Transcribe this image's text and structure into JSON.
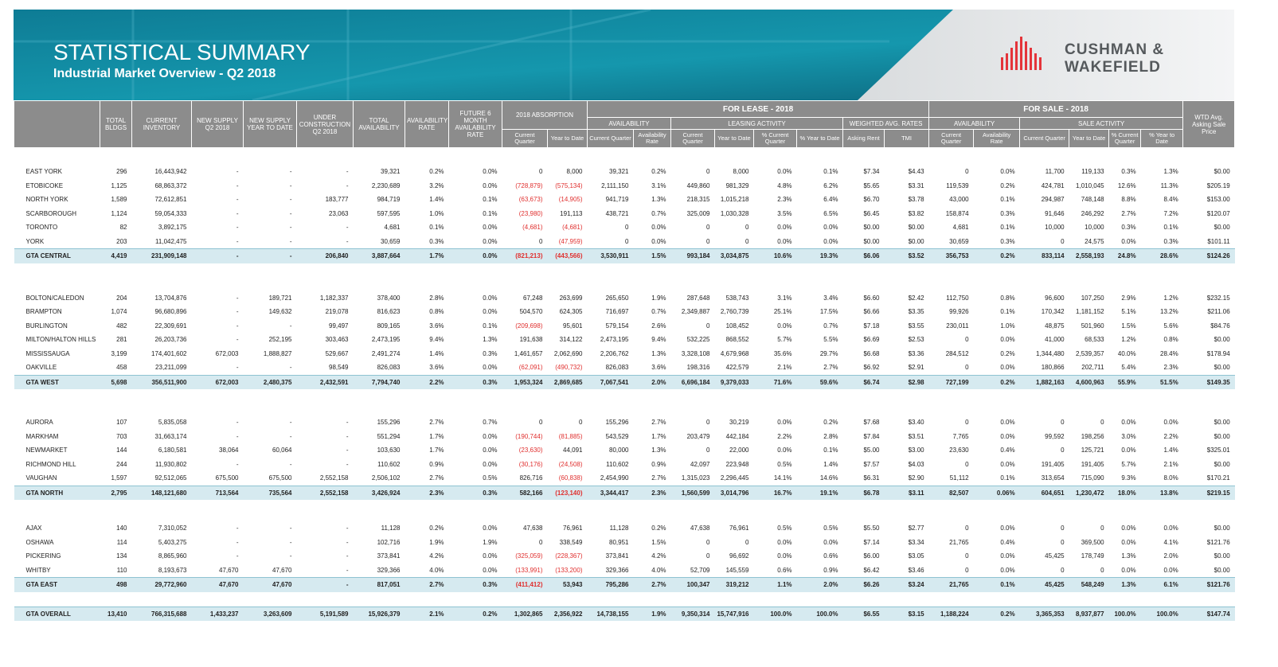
{
  "header": {
    "title": "STATISTICAL SUMMARY",
    "subtitle": "Industrial Market Overview - Q2 2018",
    "logo": [
      "CUSHMAN &",
      "WAKEFIELD"
    ]
  },
  "table": {
    "header_groups": [
      "2018 ABSORPTION",
      "FOR LEASE - 2018",
      "FOR SALE - 2018"
    ],
    "sub_groups": [
      "AVAILABILITY",
      "LEASING ACTIVITY",
      "WEIGHTED AVG. RATES",
      "AVAILABILITY",
      "SALE ACTIVITY"
    ],
    "columns": [
      "TOTAL BLDGS",
      "CURRENT INVENTORY",
      "NEW SUPPLY Q2 2018",
      "NEW SUPPLY YEAR TO DATE",
      "UNDER CONSTRUCTION Q2 2018",
      "TOTAL AVAILABILITY",
      "AVAILABILITY RATE",
      "FUTURE 6 MONTH AVAILABILITY RATE",
      "Current Quarter",
      "Year to Date",
      "Current Quarter",
      "Availability Rate",
      "Current Quarter",
      "Year to Date",
      "% Current Quarter",
      "% Year to Date",
      "Asking Rent",
      "TMI",
      "Current Quarter",
      "Availability Rate",
      "Current Quarter",
      "Year to Date",
      "% Current Quarter",
      "% Year to Date",
      "WTD Avg. Asking Sale Price"
    ],
    "groups": [
      {
        "rows": [
          [
            "EAST YORK",
            "296",
            "16,443,942",
            "-",
            "-",
            "-",
            "39,321",
            "0.2%",
            "0.0%",
            "0",
            "8,000",
            "39,321",
            "0.2%",
            "0",
            "8,000",
            "0.0%",
            "0.1%",
            "$7.34",
            "$4.43",
            "0",
            "0.0%",
            "11,700",
            "119,133",
            "0.3%",
            "1.3%",
            "$0.00"
          ],
          [
            "ETOBICOKE",
            "1,125",
            "68,863,372",
            "-",
            "-",
            "-",
            "2,230,689",
            "3.2%",
            "0.0%",
            "(728,879)",
            "(575,134)",
            "2,111,150",
            "3.1%",
            "449,860",
            "981,329",
            "4.8%",
            "6.2%",
            "$5.65",
            "$3.31",
            "119,539",
            "0.2%",
            "424,781",
            "1,010,045",
            "12.6%",
            "11.3%",
            "$205.19"
          ],
          [
            "NORTH YORK",
            "1,589",
            "72,612,851",
            "-",
            "-",
            "183,777",
            "984,719",
            "1.4%",
            "0.1%",
            "(63,673)",
            "(14,905)",
            "941,719",
            "1.3%",
            "218,315",
            "1,015,218",
            "2.3%",
            "6.4%",
            "$6.70",
            "$3.78",
            "43,000",
            "0.1%",
            "294,987",
            "748,148",
            "8.8%",
            "8.4%",
            "$153.00"
          ],
          [
            "SCARBOROUGH",
            "1,124",
            "59,054,333",
            "-",
            "-",
            "23,063",
            "597,595",
            "1.0%",
            "0.1%",
            "(23,980)",
            "191,113",
            "438,721",
            "0.7%",
            "325,009",
            "1,030,328",
            "3.5%",
            "6.5%",
            "$6.45",
            "$3.82",
            "158,874",
            "0.3%",
            "91,646",
            "246,292",
            "2.7%",
            "7.2%",
            "$120.07"
          ],
          [
            "TORONTO",
            "82",
            "3,892,175",
            "-",
            "-",
            "-",
            "4,681",
            "0.1%",
            "0.0%",
            "(4,681)",
            "(4,681)",
            "0",
            "0.0%",
            "0",
            "0",
            "0.0%",
            "0.0%",
            "$0.00",
            "$0.00",
            "4,681",
            "0.1%",
            "10,000",
            "10,000",
            "0.3%",
            "0.1%",
            "$0.00"
          ],
          [
            "YORK",
            "203",
            "11,042,475",
            "-",
            "-",
            "-",
            "30,659",
            "0.3%",
            "0.0%",
            "0",
            "(47,959)",
            "0",
            "0.0%",
            "0",
            "0",
            "0.0%",
            "0.0%",
            "$0.00",
            "$0.00",
            "30,659",
            "0.3%",
            "0",
            "24,575",
            "0.0%",
            "0.3%",
            "$101.11"
          ]
        ],
        "total": [
          "GTA CENTRAL",
          "4,419",
          "231,909,148",
          "-",
          "-",
          "206,840",
          "3,887,664",
          "1.7%",
          "0.0%",
          "(821,213)",
          "(443,566)",
          "3,530,911",
          "1.5%",
          "993,184",
          "3,034,875",
          "10.6%",
          "19.3%",
          "$6.06",
          "$3.52",
          "356,753",
          "0.2%",
          "833,114",
          "2,558,193",
          "24.8%",
          "28.6%",
          "$124.26"
        ]
      },
      {
        "rows": [
          [
            "BOLTON/CALEDON",
            "204",
            "13,704,876",
            "-",
            "189,721",
            "1,182,337",
            "378,400",
            "2.8%",
            "0.0%",
            "67,248",
            "263,699",
            "265,650",
            "1.9%",
            "287,648",
            "538,743",
            "3.1%",
            "3.4%",
            "$6.60",
            "$2.42",
            "112,750",
            "0.8%",
            "96,600",
            "107,250",
            "2.9%",
            "1.2%",
            "$232.15"
          ],
          [
            "BRAMPTON",
            "1,074",
            "96,680,896",
            "-",
            "149,632",
            "219,078",
            "816,623",
            "0.8%",
            "0.0%",
            "504,570",
            "624,305",
            "716,697",
            "0.7%",
            "2,349,887",
            "2,760,739",
            "25.1%",
            "17.5%",
            "$6.66",
            "$3.35",
            "99,926",
            "0.1%",
            "170,342",
            "1,181,152",
            "5.1%",
            "13.2%",
            "$211.06"
          ],
          [
            "BURLINGTON",
            "482",
            "22,309,691",
            "-",
            "-",
            "99,497",
            "809,165",
            "3.6%",
            "0.1%",
            "(209,698)",
            "95,601",
            "579,154",
            "2.6%",
            "0",
            "108,452",
            "0.0%",
            "0.7%",
            "$7.18",
            "$3.55",
            "230,011",
            "1.0%",
            "48,875",
            "501,960",
            "1.5%",
            "5.6%",
            "$84.76"
          ],
          [
            "MILTON/HALTON HILLS",
            "281",
            "26,203,736",
            "-",
            "252,195",
            "303,463",
            "2,473,195",
            "9.4%",
            "1.3%",
            "191,638",
            "314,122",
            "2,473,195",
            "9.4%",
            "532,225",
            "868,552",
            "5.7%",
            "5.5%",
            "$6.69",
            "$2.53",
            "0",
            "0.0%",
            "41,000",
            "68,533",
            "1.2%",
            "0.8%",
            "$0.00"
          ],
          [
            "MISSISSAUGA",
            "3,199",
            "174,401,602",
            "672,003",
            "1,888,827",
            "529,667",
            "2,491,274",
            "1.4%",
            "0.3%",
            "1,461,657",
            "2,062,690",
            "2,206,762",
            "1.3%",
            "3,328,108",
            "4,679,968",
            "35.6%",
            "29.7%",
            "$6.68",
            "$3.36",
            "284,512",
            "0.2%",
            "1,344,480",
            "2,539,357",
            "40.0%",
            "28.4%",
            "$178.94"
          ],
          [
            "OAKVILLE",
            "458",
            "23,211,099",
            "-",
            "-",
            "98,549",
            "826,083",
            "3.6%",
            "0.0%",
            "(62,091)",
            "(490,732)",
            "826,083",
            "3.6%",
            "198,316",
            "422,579",
            "2.1%",
            "2.7%",
            "$6.92",
            "$2.91",
            "0",
            "0.0%",
            "180,866",
            "202,711",
            "5.4%",
            "2.3%",
            "$0.00"
          ]
        ],
        "total": [
          "GTA WEST",
          "5,698",
          "356,511,900",
          "672,003",
          "2,480,375",
          "2,432,591",
          "7,794,740",
          "2.2%",
          "0.3%",
          "1,953,324",
          "2,869,685",
          "7,067,541",
          "2.0%",
          "6,696,184",
          "9,379,033",
          "71.6%",
          "59.6%",
          "$6.74",
          "$2.98",
          "727,199",
          "0.2%",
          "1,882,163",
          "4,600,963",
          "55.9%",
          "51.5%",
          "$149.35"
        ]
      },
      {
        "rows": [
          [
            "AURORA",
            "107",
            "5,835,058",
            "-",
            "-",
            "-",
            "155,296",
            "2.7%",
            "0.7%",
            "0",
            "0",
            "155,296",
            "2.7%",
            "0",
            "30,219",
            "0.0%",
            "0.2%",
            "$7.68",
            "$3.40",
            "0",
            "0.0%",
            "0",
            "0",
            "0.0%",
            "0.0%",
            "$0.00"
          ],
          [
            "MARKHAM",
            "703",
            "31,663,174",
            "-",
            "-",
            "-",
            "551,294",
            "1.7%",
            "0.0%",
            "(190,744)",
            "(81,885)",
            "543,529",
            "1.7%",
            "203,479",
            "442,184",
            "2.2%",
            "2.8%",
            "$7.84",
            "$3.51",
            "7,765",
            "0.0%",
            "99,592",
            "198,256",
            "3.0%",
            "2.2%",
            "$0.00"
          ],
          [
            "NEWMARKET",
            "144",
            "6,180,581",
            "38,064",
            "60,064",
            "-",
            "103,630",
            "1.7%",
            "0.0%",
            "(23,630)",
            "44,091",
            "80,000",
            "1.3%",
            "0",
            "22,000",
            "0.0%",
            "0.1%",
            "$5.00",
            "$3.00",
            "23,630",
            "0.4%",
            "0",
            "125,721",
            "0.0%",
            "1.4%",
            "$325.01"
          ],
          [
            "RICHMOND HILL",
            "244",
            "11,930,802",
            "-",
            "-",
            "-",
            "110,602",
            "0.9%",
            "0.0%",
            "(30,176)",
            "(24,508)",
            "110,602",
            "0.9%",
            "42,097",
            "223,948",
            "0.5%",
            "1.4%",
            "$7.57",
            "$4.03",
            "0",
            "0.0%",
            "191,405",
            "191,405",
            "5.7%",
            "2.1%",
            "$0.00"
          ],
          [
            "VAUGHAN",
            "1,597",
            "92,512,065",
            "675,500",
            "675,500",
            "2,552,158",
            "2,506,102",
            "2.7%",
            "0.5%",
            "826,716",
            "(60,838)",
            "2,454,990",
            "2.7%",
            "1,315,023",
            "2,296,445",
            "14.1%",
            "14.6%",
            "$6.31",
            "$2.90",
            "51,112",
            "0.1%",
            "313,654",
            "715,090",
            "9.3%",
            "8.0%",
            "$170.21"
          ]
        ],
        "total": [
          "GTA NORTH",
          "2,795",
          "148,121,680",
          "713,564",
          "735,564",
          "2,552,158",
          "3,426,924",
          "2.3%",
          "0.3%",
          "582,166",
          "(123,140)",
          "3,344,417",
          "2.3%",
          "1,560,599",
          "3,014,796",
          "16.7%",
          "19.1%",
          "$6.78",
          "$3.11",
          "82,507",
          "0.06%",
          "604,651",
          "1,230,472",
          "18.0%",
          "13.8%",
          "$219.15"
        ]
      },
      {
        "rows": [
          [
            "AJAX",
            "140",
            "7,310,052",
            "-",
            "-",
            "-",
            "11,128",
            "0.2%",
            "0.0%",
            "47,638",
            "76,961",
            "11,128",
            "0.2%",
            "47,638",
            "76,961",
            "0.5%",
            "0.5%",
            "$5.50",
            "$2.77",
            "0",
            "0.0%",
            "0",
            "0",
            "0.0%",
            "0.0%",
            "$0.00"
          ],
          [
            "OSHAWA",
            "114",
            "5,403,275",
            "-",
            "-",
            "-",
            "102,716",
            "1.9%",
            "1.9%",
            "0",
            "338,549",
            "80,951",
            "1.5%",
            "0",
            "0",
            "0.0%",
            "0.0%",
            "$7.14",
            "$3.34",
            "21,765",
            "0.4%",
            "0",
            "369,500",
            "0.0%",
            "4.1%",
            "$121.76"
          ],
          [
            "PICKERING",
            "134",
            "8,865,960",
            "-",
            "-",
            "-",
            "373,841",
            "4.2%",
            "0.0%",
            "(325,059)",
            "(228,367)",
            "373,841",
            "4.2%",
            "0",
            "96,692",
            "0.0%",
            "0.6%",
            "$6.00",
            "$3.05",
            "0",
            "0.0%",
            "45,425",
            "178,749",
            "1.3%",
            "2.0%",
            "$0.00"
          ],
          [
            "WHITBY",
            "110",
            "8,193,673",
            "47,670",
            "47,670",
            "-",
            "329,366",
            "4.0%",
            "0.0%",
            "(133,991)",
            "(133,200)",
            "329,366",
            "4.0%",
            "52,709",
            "145,559",
            "0.6%",
            "0.9%",
            "$6.42",
            "$3.46",
            "0",
            "0.0%",
            "0",
            "0",
            "0.0%",
            "0.0%",
            "$0.00"
          ]
        ],
        "total": [
          "GTA EAST",
          "498",
          "29,772,960",
          "47,670",
          "47,670",
          "-",
          "817,051",
          "2.7%",
          "0.3%",
          "(411,412)",
          "53,943",
          "795,286",
          "2.7%",
          "100,347",
          "319,212",
          "1.1%",
          "2.0%",
          "$6.26",
          "$3.24",
          "21,765",
          "0.1%",
          "45,425",
          "548,249",
          "1.3%",
          "6.1%",
          "$121.76"
        ]
      }
    ],
    "overall": [
      "GTA OVERALL",
      "13,410",
      "766,315,688",
      "1,433,237",
      "3,263,609",
      "5,191,589",
      "15,926,379",
      "2.1%",
      "0.2%",
      "1,302,865",
      "2,356,922",
      "14,738,155",
      "1.9%",
      "9,350,314",
      "15,747,916",
      "100.0%",
      "100.0%",
      "$6.55",
      "$3.15",
      "1,188,224",
      "0.2%",
      "3,365,353",
      "8,937,877",
      "100.0%",
      "100.0%",
      "$147.74"
    ]
  }
}
